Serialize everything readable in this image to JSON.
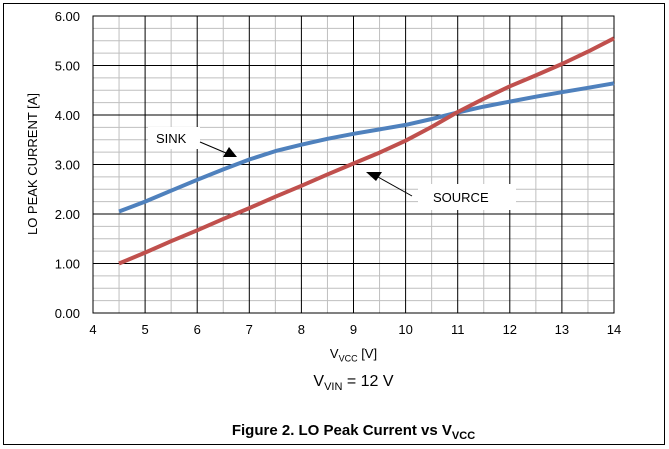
{
  "chart_data": {
    "type": "line",
    "xlabel": {
      "main": "V",
      "sub": "VCC",
      "unit": " [V]"
    },
    "ylabel": "LO PEAK CURRENT [A]",
    "xlim": [
      4,
      14
    ],
    "ylim": [
      0,
      6
    ],
    "x_ticks": [
      "4",
      "5",
      "6",
      "7",
      "8",
      "9",
      "10",
      "11",
      "12",
      "13",
      "14"
    ],
    "y_ticks": [
      "0.00",
      "1.00",
      "2.00",
      "3.00",
      "4.00",
      "5.00",
      "6.00"
    ],
    "grid": true,
    "series": [
      {
        "name": "SINK",
        "color": "#4f81bd",
        "x": [
          4.5,
          5,
          5.5,
          6,
          6.5,
          7,
          7.5,
          8,
          8.5,
          9,
          9.5,
          10,
          10.5,
          11,
          11.5,
          12,
          12.5,
          13,
          13.5,
          14
        ],
        "y": [
          2.05,
          2.25,
          2.47,
          2.69,
          2.9,
          3.1,
          3.27,
          3.4,
          3.52,
          3.62,
          3.71,
          3.8,
          3.92,
          4.05,
          4.17,
          4.27,
          4.37,
          4.46,
          4.55,
          4.64
        ]
      },
      {
        "name": "SOURCE",
        "color": "#c0504d",
        "x": [
          4.5,
          5,
          5.5,
          6,
          6.5,
          7,
          7.5,
          8,
          8.5,
          9,
          9.5,
          10,
          10.5,
          11,
          11.5,
          12,
          12.5,
          13,
          13.5,
          14
        ],
        "y": [
          1.0,
          1.22,
          1.45,
          1.67,
          1.9,
          2.12,
          2.35,
          2.57,
          2.8,
          3.02,
          3.24,
          3.48,
          3.76,
          4.06,
          4.33,
          4.58,
          4.8,
          5.03,
          5.28,
          5.55
        ]
      }
    ],
    "annotations": [
      {
        "text": "SINK",
        "series": "SINK"
      },
      {
        "text": "SOURCE",
        "series": "SOURCE"
      }
    ],
    "subtitle": {
      "main": "V",
      "sub": "VIN",
      "rest": " = 12 V"
    },
    "caption": {
      "main": "Figure 2. LO Peak Current vs V",
      "sub": "VCC"
    }
  }
}
